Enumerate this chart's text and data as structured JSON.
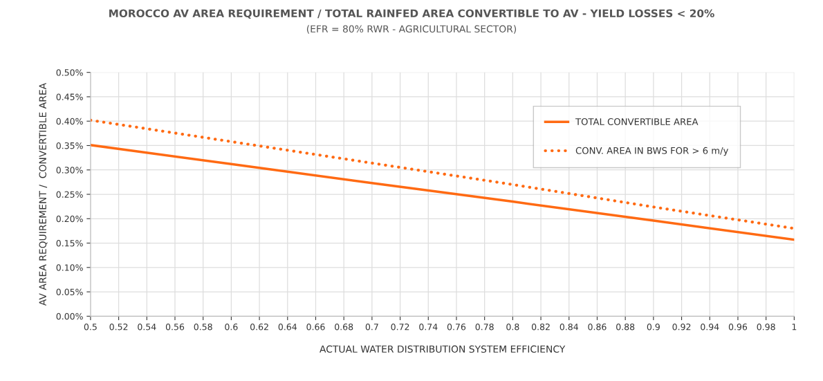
{
  "chart_data": {
    "type": "line",
    "title": "MOROCCO AV AREA REQUIREMENT / TOTAL RAINFED AREA CONVERTIBLE TO AV - YIELD LOSSES < 20%",
    "subtitle": "(EFR = 80% RWR - AGRICULTURAL SECTOR)",
    "xlabel": "ACTUAL WATER DISTRIBUTION SYSTEM EFFICIENCY",
    "ylabel": "AV AREA REQUIREMENT /  CONVERTIBLE AREA",
    "x": [
      0.5,
      0.6,
      0.7,
      0.8,
      0.9,
      1.0
    ],
    "series": [
      {
        "name": "TOTAL CONVERTIBLE AREA",
        "color": "#ff6a13",
        "line_style": "solid",
        "values": [
          0.351,
          0.312,
          0.273,
          0.235,
          0.196,
          0.157
        ]
      },
      {
        "name": "CONV. AREA IN BWS FOR > 6 m/y",
        "color": "#ff6a13",
        "line_style": "dotted",
        "values": [
          0.402,
          0.358,
          0.314,
          0.27,
          0.224,
          0.18
        ]
      }
    ],
    "xlim": [
      0.5,
      1.0
    ],
    "xticks": [
      0.5,
      0.52,
      0.54,
      0.56,
      0.58,
      0.6,
      0.62,
      0.64,
      0.66,
      0.68,
      0.7,
      0.72,
      0.74,
      0.76,
      0.78,
      0.8,
      0.82,
      0.84,
      0.86,
      0.88,
      0.9,
      0.92,
      0.94,
      0.96,
      0.98,
      1
    ],
    "ylim": [
      0,
      0.5
    ],
    "yticks": [
      {
        "value": 0,
        "label": "0.00%"
      },
      {
        "value": 0.05,
        "label": "0.05%"
      },
      {
        "value": 0.1,
        "label": "0.10%"
      },
      {
        "value": 0.15,
        "label": "0.15%"
      },
      {
        "value": 0.2,
        "label": "0.20%"
      },
      {
        "value": 0.25,
        "label": "0.25%"
      },
      {
        "value": 0.3,
        "label": "0.30%"
      },
      {
        "value": 0.35,
        "label": "0.35%"
      },
      {
        "value": 0.4,
        "label": "0.40%"
      },
      {
        "value": 0.45,
        "label": "0.45%"
      },
      {
        "value": 0.5,
        "label": "0.50%"
      }
    ],
    "grid": true,
    "legend": "top right",
    "marker": "none"
  }
}
